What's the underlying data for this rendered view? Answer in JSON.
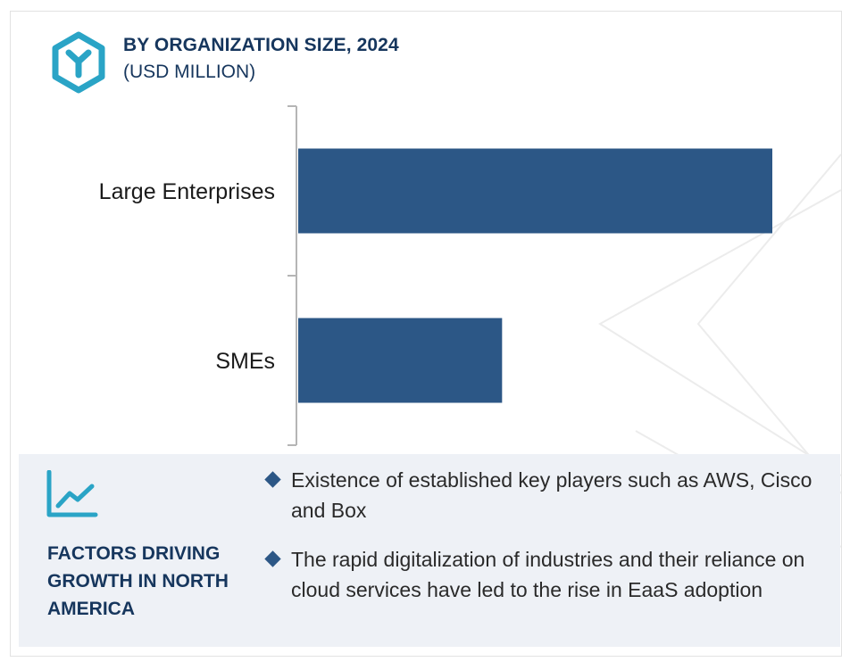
{
  "header": {
    "logo_icon": "hexagon-y-icon",
    "title": "BY ORGANIZATION SIZE, 2024",
    "subtitle": "(USD MILLION)"
  },
  "chart_data": {
    "type": "bar",
    "orientation": "horizontal",
    "title": "BY ORGANIZATION SIZE, 2024",
    "subtitle": "(USD MILLION)",
    "categories": [
      "Large Enterprises",
      "SMEs"
    ],
    "values": [
      100,
      43
    ],
    "value_scale": "relative (no axis ticks shown)",
    "xlim": [
      0,
      100
    ],
    "grid": false,
    "legend": "none",
    "bar_color": "#2c5786"
  },
  "factors": {
    "icon": "line-chart-growth-icon",
    "title": "FACTORS DRIVING GROWTH IN NORTH AMERICA",
    "bullets": [
      "Existence of established key players such as AWS, Cisco and Box",
      "The rapid digitalization of industries and their reliance on cloud services have led to the rise in EaaS adoption"
    ]
  },
  "colors": {
    "brand_navy": "#16365d",
    "bar": "#2c5786",
    "accent_teal": "#2aa4c6",
    "panel_bg": "#eef1f6"
  }
}
